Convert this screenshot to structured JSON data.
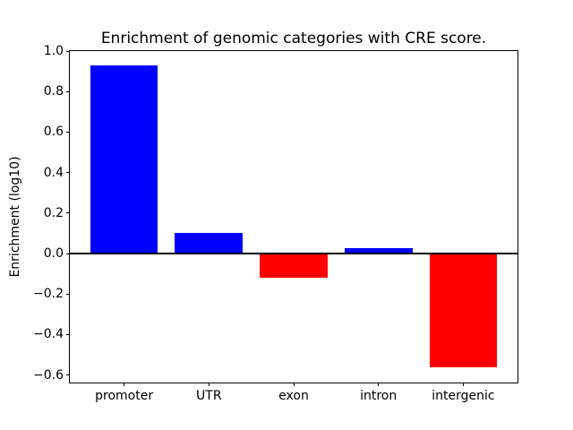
{
  "chart_data": {
    "type": "bar",
    "title": "Enrichment of genomic categories with CRE score.",
    "xlabel": "",
    "ylabel": "Enrichment (log10)",
    "categories": [
      "promoter",
      "UTR",
      "exon",
      "intron",
      "intergenic"
    ],
    "values": [
      0.93,
      0.1,
      -0.12,
      0.025,
      -0.56
    ],
    "positive_color": "#0000ff",
    "negative_color": "#ff0000",
    "bar_colors": [
      "#0000ff",
      "#0000ff",
      "#ff0000",
      "#0000ff",
      "#ff0000"
    ],
    "yticks": [
      1.0,
      0.8,
      0.6,
      0.4,
      0.2,
      0.0,
      -0.2,
      -0.4,
      -0.6
    ],
    "ylim": [
      -0.637,
      1.0
    ],
    "xlim": [
      -0.64,
      4.64
    ],
    "bar_width": 0.8,
    "grid": false,
    "legend": null,
    "zero_line": true,
    "axis_color": "#000000",
    "background_color": "#ffffff"
  }
}
